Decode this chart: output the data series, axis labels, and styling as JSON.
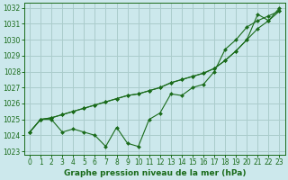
{
  "title": "Graphe pression niveau de la mer (hPa)",
  "background_color": "#cce8ec",
  "grid_color": "#aacccc",
  "line_color": "#1a6b1a",
  "marker_color": "#1a6b1a",
  "xlim": [
    -0.5,
    23.5
  ],
  "ylim": [
    1022.8,
    1032.3
  ],
  "yticks": [
    1023,
    1024,
    1025,
    1026,
    1027,
    1028,
    1029,
    1030,
    1031,
    1032
  ],
  "xticks": [
    0,
    1,
    2,
    3,
    4,
    5,
    6,
    7,
    8,
    9,
    10,
    11,
    12,
    13,
    14,
    15,
    16,
    17,
    18,
    19,
    20,
    21,
    22,
    23
  ],
  "series1": [
    1024.2,
    1025.0,
    1025.0,
    1024.2,
    1024.4,
    1024.2,
    1024.0,
    1023.3,
    1024.5,
    1023.5,
    1023.3,
    1025.0,
    1025.4,
    1026.6,
    1026.5,
    1027.0,
    1027.2,
    1028.0,
    1029.4,
    1030.0,
    1030.8,
    1031.2,
    1031.5,
    1031.8
  ],
  "series2": [
    1024.2,
    1025.0,
    1025.1,
    1025.3,
    1025.5,
    1025.7,
    1025.9,
    1026.1,
    1026.3,
    1026.5,
    1026.6,
    1026.8,
    1027.0,
    1027.3,
    1027.5,
    1027.7,
    1027.9,
    1028.2,
    1028.7,
    1029.3,
    1030.0,
    1030.7,
    1031.2,
    1031.8
  ],
  "series3": [
    1024.2,
    1025.0,
    1025.1,
    1025.3,
    1025.5,
    1025.7,
    1025.9,
    1026.1,
    1026.3,
    1026.5,
    1026.6,
    1026.8,
    1027.0,
    1027.3,
    1027.5,
    1027.7,
    1027.9,
    1028.2,
    1028.7,
    1029.3,
    1030.0,
    1031.6,
    1031.2,
    1032.0
  ],
  "tick_fontsize": 5.5,
  "label_fontsize": 6.5
}
